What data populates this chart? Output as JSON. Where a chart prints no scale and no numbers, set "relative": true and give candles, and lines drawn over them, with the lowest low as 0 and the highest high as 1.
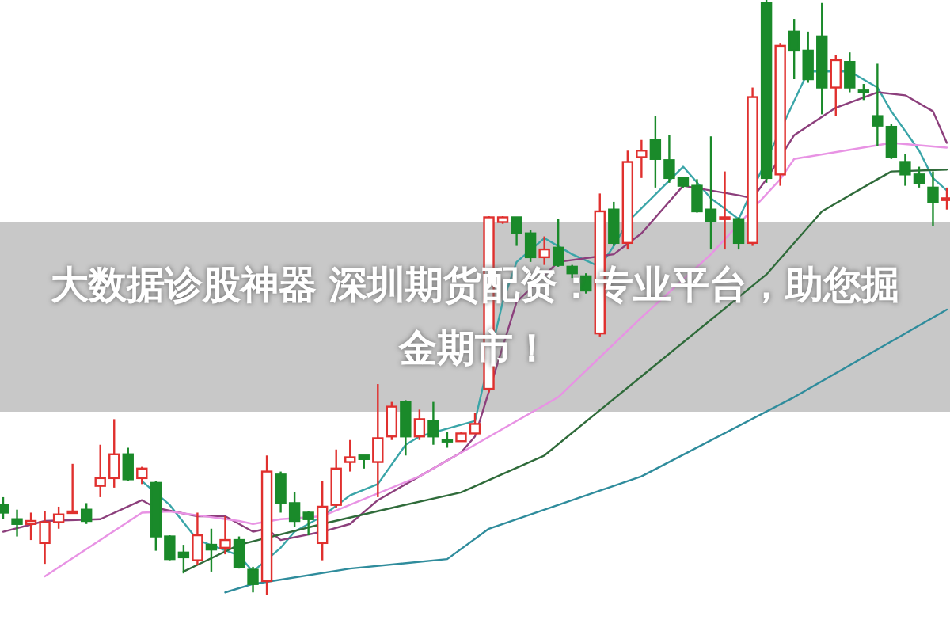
{
  "chart_data": {
    "type": "candlestick",
    "relative": true,
    "title": "大数据诊股神器 深圳期货配资：专业平台，助您掘金期市！",
    "categories": [
      null,
      null,
      null,
      null,
      null,
      null,
      null,
      null,
      null,
      null,
      null,
      null,
      null,
      null,
      null,
      null,
      null,
      null,
      null,
      null,
      null,
      null,
      null,
      null,
      null,
      null,
      null,
      null,
      null,
      null,
      null,
      null,
      null,
      null,
      null,
      null,
      null,
      null,
      null,
      null,
      null,
      null,
      null,
      null,
      null,
      null,
      null,
      null,
      null,
      null,
      null,
      null,
      null,
      null,
      null,
      null,
      null,
      null,
      null,
      null,
      null,
      null,
      null,
      null,
      null,
      null,
      null,
      null,
      null
    ],
    "ohlc": [
      [
        0.152,
        0.165,
        0.128,
        0.139
      ],
      [
        0.128,
        0.144,
        0.099,
        0.12
      ],
      [
        0.12,
        0.139,
        0.093,
        0.125
      ],
      [
        0.088,
        0.141,
        0.053,
        0.123
      ],
      [
        0.123,
        0.149,
        0.112,
        0.136
      ],
      [
        0.139,
        0.221,
        0.139,
        0.141
      ],
      [
        0.144,
        0.155,
        0.12,
        0.125
      ],
      [
        0.184,
        0.253,
        0.165,
        0.197
      ],
      [
        0.197,
        0.296,
        0.181,
        0.237
      ],
      [
        0.237,
        0.248,
        0.192,
        0.195
      ],
      [
        0.197,
        0.216,
        0.187,
        0.213
      ],
      [
        0.189,
        0.192,
        0.075,
        0.099
      ],
      [
        0.099,
        0.101,
        0.059,
        0.061
      ],
      [
        0.072,
        0.085,
        0.037,
        0.064
      ],
      [
        0.059,
        0.139,
        0.051,
        0.101
      ],
      [
        0.085,
        0.112,
        0.04,
        0.077
      ],
      [
        0.08,
        0.133,
        0.069,
        0.093
      ],
      [
        0.093,
        0.099,
        0.045,
        0.048
      ],
      [
        0.043,
        0.048,
        0.005,
        0.019
      ],
      [
        0.024,
        0.235,
        0,
        0.208
      ],
      [
        0.203,
        0.208,
        0.139,
        0.155
      ],
      [
        0.155,
        0.173,
        0.115,
        0.125
      ],
      [
        0.139,
        0.141,
        0.101,
        0.128
      ],
      [
        0.088,
        0.192,
        0.059,
        0.149
      ],
      [
        0.152,
        0.245,
        0.147,
        0.213
      ],
      [
        0.224,
        0.261,
        0.208,
        0.232
      ],
      [
        0.235,
        0.235,
        0.213,
        0.229
      ],
      [
        0.224,
        0.355,
        0.165,
        0.264
      ],
      [
        0.267,
        0.325,
        0.261,
        0.317
      ],
      [
        0.325,
        0.328,
        0.235,
        0.267
      ],
      [
        0.267,
        0.312,
        0.261,
        0.296
      ],
      [
        0.293,
        0.325,
        0.253,
        0.267
      ],
      [
        0.261,
        0.275,
        0.248,
        0.259
      ],
      [
        0.259,
        0.275,
        0.259,
        0.272
      ],
      [
        0.272,
        0.307,
        0.272,
        0.288
      ],
      [
        0.347,
        0.637,
        0.341,
        0.635
      ],
      [
        0.627,
        0.637,
        0.624,
        0.635
      ],
      [
        0.635,
        0.635,
        0.587,
        0.608
      ],
      [
        0.608,
        0.613,
        0.56,
        0.568
      ],
      [
        0.568,
        0.603,
        0.555,
        0.581
      ],
      [
        0.584,
        0.632,
        0.552,
        0.555
      ],
      [
        0.552,
        0.555,
        0.533,
        0.541
      ],
      [
        0.536,
        0.541,
        0.507,
        0.512
      ],
      [
        0.44,
        0.675,
        0.435,
        0.645
      ],
      [
        0.648,
        0.661,
        0.587,
        0.592
      ],
      [
        0.592,
        0.747,
        0.581,
        0.728
      ],
      [
        0.736,
        0.765,
        0.701,
        0.747
      ],
      [
        0.765,
        0.805,
        0.685,
        0.733
      ],
      [
        0.731,
        0.773,
        0.693,
        0.701
      ],
      [
        0.701,
        0.701,
        0.685,
        0.688
      ],
      [
        0.688,
        0.699,
        0.643,
        0.645
      ],
      [
        0.648,
        0.771,
        0.581,
        0.629
      ],
      [
        0.632,
        0.712,
        0.581,
        0.635
      ],
      [
        0.632,
        0.635,
        0.581,
        0.592
      ],
      [
        0.592,
        0.853,
        0.587,
        0.837
      ],
      [
        0.995,
        1,
        0.693,
        0.701
      ],
      [
        0.707,
        0.928,
        0.688,
        0.923
      ],
      [
        0.947,
        0.968,
        0.867,
        0.915
      ],
      [
        0.915,
        0.947,
        0.861,
        0.867
      ],
      [
        0.939,
        0.995,
        0.808,
        0.853
      ],
      [
        0.853,
        0.907,
        0.805,
        0.899
      ],
      [
        0.896,
        0.912,
        0.845,
        0.853
      ],
      [
        0.848,
        0.859,
        0.832,
        0.845
      ],
      [
        0.805,
        0.893,
        0.755,
        0.789
      ],
      [
        0.787,
        0.792,
        0.733,
        0.736
      ],
      [
        0.728,
        0.741,
        0.688,
        0.707
      ],
      [
        0.707,
        0.72,
        0.685,
        0.693
      ],
      [
        0.685,
        0.712,
        0.621,
        0.661
      ],
      [
        0.664,
        0.685,
        0.648,
        0.667
      ]
    ],
    "series": [
      {
        "type": "line",
        "color": "#3aa5a8",
        "values": [
          null,
          null,
          null,
          null,
          null,
          null,
          null,
          null,
          null,
          null,
          0.192,
          null,
          0.152,
          null,
          0.093,
          null,
          null,
          0.067,
          0.04,
          null,
          0.08,
          0.107,
          null,
          0.133,
          null,
          0.168,
          null,
          0.187,
          null,
          0.253,
          0.267,
          null,
          0.28,
          null,
          0.293,
          null,
          0.493,
          0.56,
          null,
          0.6,
          null,
          0.573,
          null,
          0.552,
          0.587,
          0.627,
          null,
          null,
          null,
          0.72,
          null,
          0.667,
          null,
          0.632,
          null,
          null,
          null,
          null,
          0.88,
          null,
          null,
          0.88,
          null,
          0.853,
          0.813,
          null,
          0.747,
          0.701,
          0.68
        ]
      },
      {
        "type": "line",
        "color": "#8c3f7c",
        "values": [
          0.107,
          null,
          null,
          0.125,
          null,
          null,
          null,
          0.128,
          null,
          null,
          0.16,
          0.147,
          null,
          null,
          0.133,
          null,
          0.133,
          null,
          0.107,
          0.112,
          0.093,
          null,
          null,
          0.107,
          null,
          0.12,
          null,
          0.16,
          null,
          null,
          0.2,
          null,
          null,
          0.24,
          0.267,
          null,
          null,
          0.493,
          null,
          null,
          0.56,
          null,
          null,
          null,
          0.573,
          null,
          0.608,
          null,
          null,
          0.688,
          null,
          null,
          null,
          0.672,
          0.667,
          0.699,
          null,
          0.773,
          null,
          null,
          0.819,
          null,
          null,
          0.845,
          null,
          0.84,
          null,
          0.813,
          0.76
        ]
      },
      {
        "type": "line",
        "color": "#e893e4",
        "values": [
          null,
          null,
          null,
          0.032,
          null,
          null,
          null,
          0.093,
          null,
          null,
          0.139,
          null,
          0.141,
          null,
          null,
          null,
          null,
          0.125,
          0.12,
          null,
          0.128,
          null,
          null,
          0.133,
          null,
          null,
          null,
          null,
          null,
          null,
          0.2,
          null,
          null,
          null,
          0.253,
          null,
          null,
          null,
          null,
          null,
          0.333,
          null,
          null,
          null,
          null,
          null,
          0.467,
          null,
          null,
          null,
          null,
          0.573,
          null,
          null,
          null,
          null,
          0.699,
          0.733,
          null,
          null,
          null,
          null,
          null,
          null,
          0.76,
          null,
          null,
          null,
          0.752
        ]
      },
      {
        "type": "line",
        "color": "#2f6b3a",
        "values": [
          null,
          null,
          null,
          null,
          null,
          null,
          null,
          null,
          null,
          null,
          null,
          null,
          null,
          0.04,
          null,
          null,
          null,
          0.085,
          null,
          null,
          null,
          null,
          null,
          0.12,
          null,
          null,
          null,
          null,
          0.147,
          null,
          null,
          null,
          null,
          0.173,
          null,
          null,
          null,
          null,
          null,
          0.235,
          null,
          null,
          null,
          null,
          null,
          null,
          null,
          0.387,
          null,
          null,
          null,
          null,
          null,
          null,
          null,
          0.539,
          null,
          null,
          null,
          0.645,
          null,
          null,
          null,
          0.699,
          0.712,
          null,
          null,
          null,
          0.715
        ]
      },
      {
        "type": "line",
        "color": "#2f8c9c",
        "values": [
          null,
          null,
          null,
          null,
          null,
          null,
          null,
          null,
          null,
          null,
          null,
          null,
          null,
          null,
          null,
          null,
          0.005,
          null,
          0.019,
          null,
          null,
          null,
          null,
          null,
          null,
          0.045,
          null,
          null,
          null,
          null,
          null,
          null,
          0.061,
          null,
          null,
          0.112,
          null,
          null,
          null,
          null,
          null,
          null,
          null,
          null,
          null,
          null,
          0.2,
          null,
          null,
          null,
          null,
          null,
          null,
          null,
          null,
          null,
          null,
          0.333,
          null,
          null,
          null,
          null,
          null,
          null,
          null,
          null,
          null,
          null,
          0.48
        ]
      }
    ]
  }
}
